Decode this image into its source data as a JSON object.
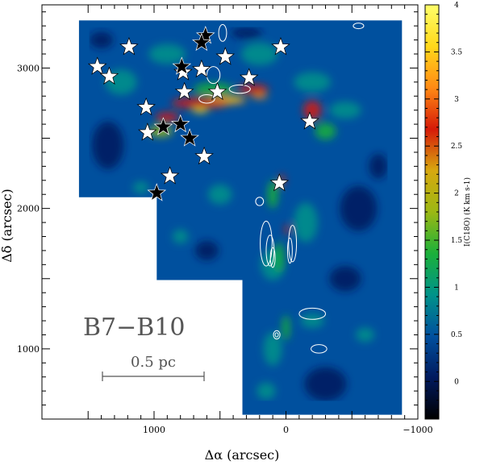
{
  "chart_data": {
    "type": "heatmap",
    "xlabel": "Δα (arcsec)",
    "ylabel": "Δδ (arcsec)",
    "xlim": [
      1850,
      -1000
    ],
    "ylim": [
      500,
      3450
    ],
    "xticks": [
      1000,
      0,
      -1000
    ],
    "yticks": [
      1000,
      2000,
      3000
    ],
    "colorbar": {
      "label": "I(C18O) (K km s-1)",
      "range": [
        -0.4,
        4
      ],
      "ticks": [
        0,
        0.5,
        1,
        1.5,
        2,
        2.5,
        3,
        3.5,
        4
      ],
      "colors": [
        "#000000",
        "#001a5e",
        "#00509e",
        "#00938a",
        "#1bb03a",
        "#9cb814",
        "#d7a810",
        "#d61a08",
        "#ff8a14",
        "#ffd81a",
        "#ffff6a"
      ]
    },
    "map_outline": [
      [
        1570,
        3340
      ],
      [
        -880,
        3340
      ],
      [
        -880,
        530
      ],
      [
        330,
        530
      ],
      [
        330,
        1490
      ],
      [
        980,
        1490
      ],
      [
        980,
        2080
      ],
      [
        1570,
        2080
      ]
    ],
    "annotations": {
      "region": "B7−B10",
      "scalebar": "0.5 pc"
    },
    "white_stars": [
      [
        1430,
        3010
      ],
      [
        1340,
        2940
      ],
      [
        1190,
        3150
      ],
      [
        780,
        2970
      ],
      [
        640,
        2990
      ],
      [
        460,
        3080
      ],
      [
        280,
        2930
      ],
      [
        40,
        3150
      ],
      [
        1060,
        2720
      ],
      [
        770,
        2830
      ],
      [
        520,
        2830
      ],
      [
        1050,
        2540
      ],
      [
        620,
        2370
      ],
      [
        880,
        2230
      ],
      [
        -180,
        2620
      ],
      [
        50,
        2180
      ]
    ],
    "black_stars": [
      [
        610,
        3230
      ],
      [
        640,
        3180
      ],
      [
        790,
        3010
      ],
      [
        930,
        2580
      ],
      [
        800,
        2600
      ],
      [
        730,
        2500
      ],
      [
        980,
        2110
      ]
    ],
    "contours_white": true
  }
}
